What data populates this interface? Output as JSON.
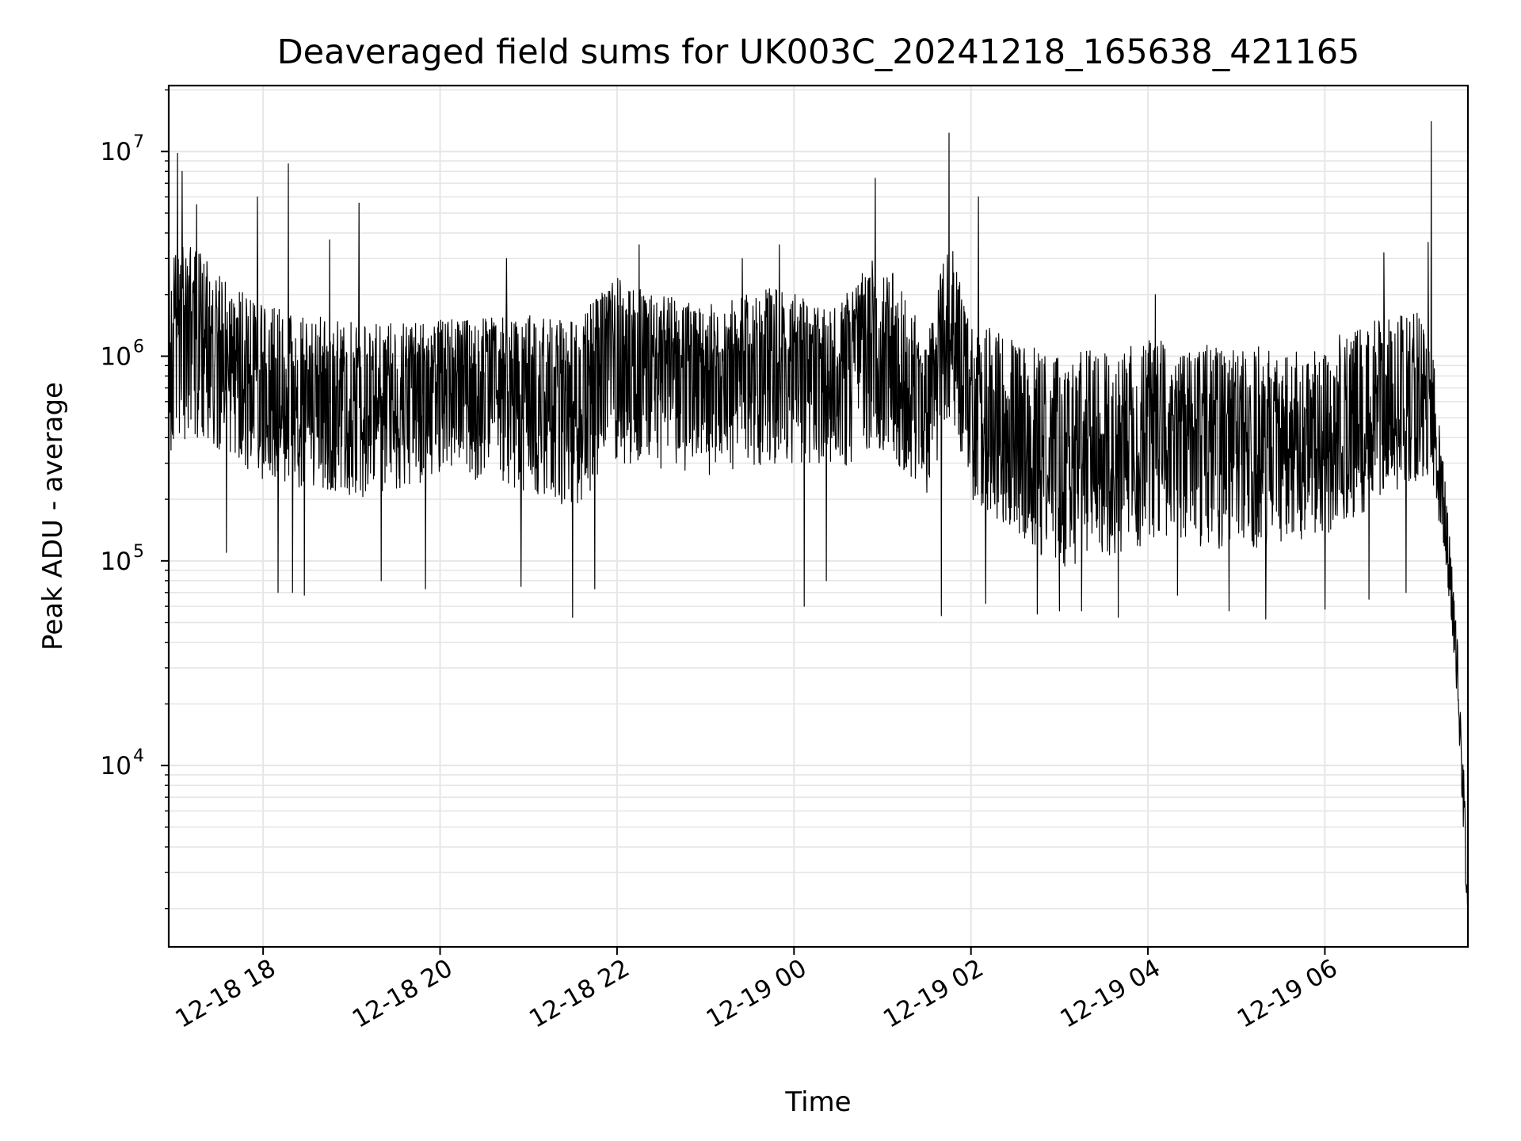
{
  "chart_data": {
    "type": "line",
    "title": "Deaveraged field sums for UK003C_20241218_165638_421165",
    "xlabel": "Time",
    "ylabel": "Peak ADU - average",
    "yscale": "log",
    "xlim": [
      "2024-12-18 16:56",
      "2024-12-19 07:37"
    ],
    "ylim": [
      1300,
      21000000
    ],
    "grid": true,
    "grid_minor": true,
    "line_color": "#000000",
    "grid_color": "#e6e6e6",
    "x_ticks": [
      {
        "value": "2024-12-18 18:00",
        "label": "12-18 18"
      },
      {
        "value": "2024-12-18 20:00",
        "label": "12-18 20"
      },
      {
        "value": "2024-12-18 22:00",
        "label": "12-18 22"
      },
      {
        "value": "2024-12-19 00:00",
        "label": "12-19 00"
      },
      {
        "value": "2024-12-19 02:00",
        "label": "12-19 02"
      },
      {
        "value": "2024-12-19 04:00",
        "label": "12-19 04"
      },
      {
        "value": "2024-12-19 06:00",
        "label": "12-19 06"
      }
    ],
    "y_ticks": [
      {
        "value": 10000,
        "base": "10",
        "exp": "4"
      },
      {
        "value": 100000,
        "base": "10",
        "exp": "5"
      },
      {
        "value": 1000000,
        "base": "10",
        "exp": "6"
      },
      {
        "value": 10000000,
        "base": "10",
        "exp": "7"
      }
    ],
    "series": [
      {
        "envelope": [
          {
            "t": "2024-12-18 16:56",
            "lo": 300000,
            "hi": 3000000,
            "baseline": 1000000
          },
          {
            "t": "2024-12-18 17:10",
            "lo": 400000,
            "hi": 4000000,
            "baseline": 1500000
          },
          {
            "t": "2024-12-18 17:30",
            "lo": 350000,
            "hi": 2500000,
            "baseline": 1000000
          },
          {
            "t": "2024-12-18 18:00",
            "lo": 250000,
            "hi": 1800000,
            "baseline": 800000
          },
          {
            "t": "2024-12-18 19:00",
            "lo": 200000,
            "hi": 1500000,
            "baseline": 700000
          },
          {
            "t": "2024-12-18 20:00",
            "lo": 250000,
            "hi": 1500000,
            "baseline": 800000
          },
          {
            "t": "2024-12-18 21:00",
            "lo": 220000,
            "hi": 1600000,
            "baseline": 750000
          },
          {
            "t": "2024-12-18 21:30",
            "lo": 180000,
            "hi": 1500000,
            "baseline": 650000
          },
          {
            "t": "2024-12-18 22:00",
            "lo": 300000,
            "hi": 2500000,
            "baseline": 1100000
          },
          {
            "t": "2024-12-18 22:30",
            "lo": 280000,
            "hi": 2000000,
            "baseline": 900000
          },
          {
            "t": "2024-12-18 23:00",
            "lo": 260000,
            "hi": 1800000,
            "baseline": 800000
          },
          {
            "t": "2024-12-18 23:50",
            "lo": 300000,
            "hi": 2200000,
            "baseline": 1000000
          },
          {
            "t": "2024-12-19 00:30",
            "lo": 280000,
            "hi": 1800000,
            "baseline": 850000
          },
          {
            "t": "2024-12-19 01:00",
            "lo": 350000,
            "hi": 3500000,
            "baseline": 1300000
          },
          {
            "t": "2024-12-19 01:30",
            "lo": 200000,
            "hi": 1200000,
            "baseline": 600000
          },
          {
            "t": "2024-12-19 01:45",
            "lo": 500000,
            "hi": 4000000,
            "baseline": 1800000
          },
          {
            "t": "2024-12-19 02:00",
            "lo": 200000,
            "hi": 1500000,
            "baseline": 600000
          },
          {
            "t": "2024-12-19 03:00",
            "lo": 90000,
            "hi": 1000000,
            "baseline": 300000
          },
          {
            "t": "2024-12-19 04:00",
            "lo": 120000,
            "hi": 1200000,
            "baseline": 400000
          },
          {
            "t": "2024-12-19 05:00",
            "lo": 110000,
            "hi": 1100000,
            "baseline": 380000
          },
          {
            "t": "2024-12-19 06:00",
            "lo": 130000,
            "hi": 1200000,
            "baseline": 420000
          },
          {
            "t": "2024-12-19 07:00",
            "lo": 250000,
            "hi": 1800000,
            "baseline": 700000
          },
          {
            "t": "2024-12-19 07:15",
            "lo": 200000,
            "hi": 1000000,
            "baseline": 500000
          },
          {
            "t": "2024-12-19 07:25",
            "lo": 60000,
            "hi": 120000,
            "baseline": 80000
          },
          {
            "t": "2024-12-19 07:30",
            "lo": 20000,
            "hi": 40000,
            "baseline": 30000
          },
          {
            "t": "2024-12-19 07:36",
            "lo": 2000,
            "hi": 5000,
            "baseline": 3000
          }
        ],
        "spikes": [
          {
            "t": "2024-12-18 17:02",
            "v": 9800000
          },
          {
            "t": "2024-12-18 17:05",
            "v": 8000000
          },
          {
            "t": "2024-12-18 17:15",
            "v": 5500000
          },
          {
            "t": "2024-12-18 17:35",
            "v": 5500000
          },
          {
            "t": "2024-12-18 17:56",
            "v": 6000000
          },
          {
            "t": "2024-12-18 18:17",
            "v": 8700000
          },
          {
            "t": "2024-12-18 18:45",
            "v": 3700000
          },
          {
            "t": "2024-12-18 19:05",
            "v": 5600000
          },
          {
            "t": "2024-12-18 20:45",
            "v": 3000000
          },
          {
            "t": "2024-12-18 22:15",
            "v": 3500000
          },
          {
            "t": "2024-12-18 23:25",
            "v": 3000000
          },
          {
            "t": "2024-12-18 23:50",
            "v": 3500000
          },
          {
            "t": "2024-12-19 00:55",
            "v": 7400000
          },
          {
            "t": "2024-12-19 01:45",
            "v": 12300000
          },
          {
            "t": "2024-12-19 02:05",
            "v": 6000000
          },
          {
            "t": "2024-12-19 04:05",
            "v": 2000000
          },
          {
            "t": "2024-12-19 06:40",
            "v": 3200000
          },
          {
            "t": "2024-12-19 07:10",
            "v": 3600000
          },
          {
            "t": "2024-12-19 07:12",
            "v": 14000000
          }
        ],
        "dips": [
          {
            "t": "2024-12-18 17:35",
            "v": 110000
          },
          {
            "t": "2024-12-18 18:10",
            "v": 70000
          },
          {
            "t": "2024-12-18 18:20",
            "v": 70000
          },
          {
            "t": "2024-12-18 18:28",
            "v": 68000
          },
          {
            "t": "2024-12-18 19:20",
            "v": 80000
          },
          {
            "t": "2024-12-18 19:50",
            "v": 73000
          },
          {
            "t": "2024-12-18 20:55",
            "v": 75000
          },
          {
            "t": "2024-12-18 21:30",
            "v": 53000
          },
          {
            "t": "2024-12-18 21:45",
            "v": 73000
          },
          {
            "t": "2024-12-19 00:07",
            "v": 60000
          },
          {
            "t": "2024-12-19 00:22",
            "v": 80000
          },
          {
            "t": "2024-12-19 01:40",
            "v": 54000
          },
          {
            "t": "2024-12-19 02:10",
            "v": 62000
          },
          {
            "t": "2024-12-19 02:45",
            "v": 55000
          },
          {
            "t": "2024-12-19 03:00",
            "v": 57000
          },
          {
            "t": "2024-12-19 03:15",
            "v": 57000
          },
          {
            "t": "2024-12-19 03:40",
            "v": 53000
          },
          {
            "t": "2024-12-19 04:20",
            "v": 68000
          },
          {
            "t": "2024-12-19 04:55",
            "v": 57000
          },
          {
            "t": "2024-12-19 05:20",
            "v": 52000
          },
          {
            "t": "2024-12-19 06:00",
            "v": 58000
          },
          {
            "t": "2024-12-19 06:30",
            "v": 65000
          },
          {
            "t": "2024-12-19 06:55",
            "v": 70000
          },
          {
            "t": "2024-12-19 07:37",
            "v": 2200
          }
        ]
      }
    ]
  }
}
